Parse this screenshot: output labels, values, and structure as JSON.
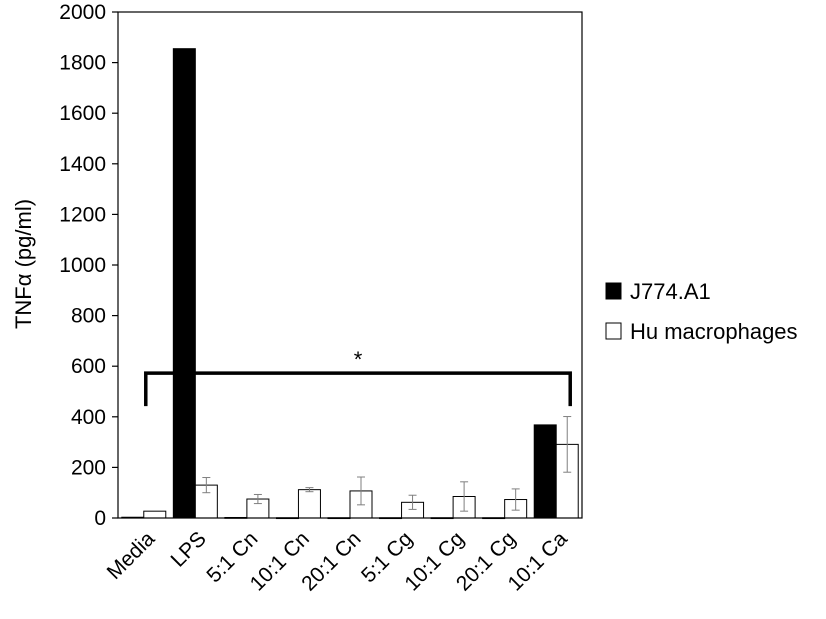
{
  "chart_data": {
    "type": "bar",
    "ylabel": "TNFα (pg/ml)",
    "ylim": [
      0,
      2000
    ],
    "yticks": [
      0,
      200,
      400,
      600,
      800,
      1000,
      1200,
      1400,
      1600,
      1800,
      2000
    ],
    "grid": false,
    "legend_position": "right",
    "categories": [
      "Media",
      "LPS",
      "5:1 Cn",
      "10:1 Cn",
      "20:1 Cn",
      "5:1 Cg",
      "10:1 Cg",
      "20:1 Cg",
      "10:1 Ca"
    ],
    "series": [
      {
        "name": "J774.A1",
        "color": "#000000",
        "values": [
          3,
          1855,
          2,
          1,
          1,
          1,
          1,
          1,
          368
        ],
        "errors": [
          0,
          0,
          0,
          0,
          0,
          0,
          0,
          0,
          0
        ]
      },
      {
        "name": "Hu macrophages",
        "color": "#ffffff",
        "values": [
          27,
          130,
          75,
          112,
          107,
          62,
          85,
          73,
          291
        ],
        "errors": [
          0,
          30,
          18,
          8,
          55,
          28,
          58,
          42,
          110
        ]
      }
    ],
    "annotations": [
      {
        "text": "*",
        "from_category": "Media",
        "to_category": "10:1 Ca",
        "bracket_value": 545
      }
    ]
  }
}
